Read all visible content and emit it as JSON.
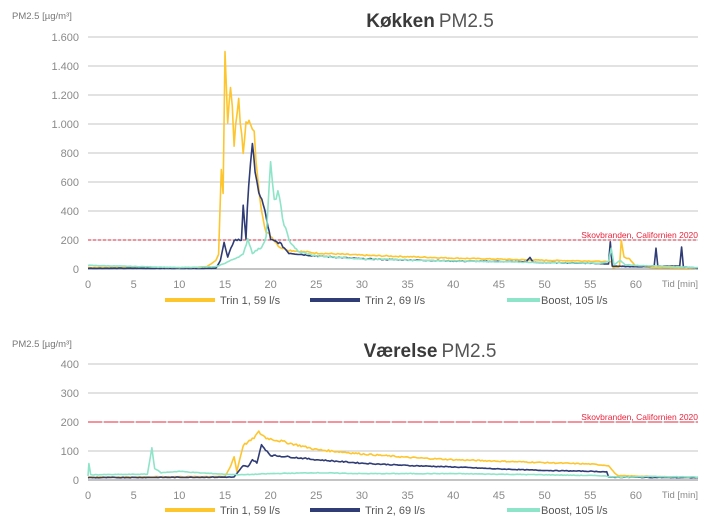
{
  "colors": {
    "trin1": "#fdc52e",
    "trin2": "#2f3c75",
    "boost": "#8ee4c8",
    "reference": "#e8243c",
    "grid": "#c4c4c4"
  },
  "chart_data": [
    {
      "type": "line",
      "title_bold": "Køkken",
      "title_rest": "PM2.5",
      "ylabel": "PM2.5 [µg/m³]",
      "xlabel": "Tid [min]",
      "xlim": [
        0,
        66.8
      ],
      "ylim": [
        0,
        1600
      ],
      "xticks": [
        0,
        5,
        10,
        15,
        20,
        25,
        30,
        35,
        40,
        45,
        50,
        55,
        60
      ],
      "yticks": [
        0,
        200,
        400,
        600,
        800,
        1000,
        1200,
        1400,
        1600
      ],
      "ytick_labels": [
        "0",
        "200",
        "400",
        "600",
        "800",
        "1.000",
        "1.200",
        "1.400",
        "1.600"
      ],
      "grid": true,
      "legend_position": "bottom",
      "reference": {
        "label": "Skovbranden, Californien 2020",
        "value": 200
      },
      "series": [
        {
          "name": "Trin 1, 59 l/s",
          "key": "trin1",
          "points": [
            [
              0,
              10
            ],
            [
              10,
              8
            ],
            [
              13,
              15
            ],
            [
              14,
              60
            ],
            [
              14.3,
              100
            ],
            [
              14.6,
              700
            ],
            [
              14.8,
              500
            ],
            [
              15,
              1570
            ],
            [
              15.3,
              1000
            ],
            [
              15.6,
              1300
            ],
            [
              16,
              850
            ],
            [
              16.5,
              1180
            ],
            [
              17,
              770
            ],
            [
              17.3,
              1060
            ],
            [
              17.8,
              980
            ],
            [
              18.2,
              920
            ],
            [
              18.6,
              600
            ],
            [
              19,
              420
            ],
            [
              19.5,
              250
            ],
            [
              20,
              230
            ],
            [
              21,
              150
            ],
            [
              22,
              130
            ],
            [
              25,
              110
            ],
            [
              30,
              95
            ],
            [
              35,
              85
            ],
            [
              40,
              75
            ],
            [
              45,
              68
            ],
            [
              50,
              60
            ],
            [
              55,
              55
            ],
            [
              57.3,
              50
            ],
            [
              57.5,
              10
            ],
            [
              58.2,
              15
            ],
            [
              58.4,
              200
            ],
            [
              58.7,
              80
            ],
            [
              59.3,
              70
            ],
            [
              60,
              20
            ],
            [
              62,
              10
            ],
            [
              66.8,
              5
            ]
          ]
        },
        {
          "name": "Trin 2, 69 l/s",
          "key": "trin2",
          "points": [
            [
              0,
              5
            ],
            [
              14,
              5
            ],
            [
              14.5,
              60
            ],
            [
              14.9,
              180
            ],
            [
              15.3,
              80
            ],
            [
              16,
              200
            ],
            [
              16.8,
              200
            ],
            [
              17,
              450
            ],
            [
              17.3,
              200
            ],
            [
              17.6,
              600
            ],
            [
              18,
              880
            ],
            [
              18.3,
              640
            ],
            [
              18.7,
              540
            ],
            [
              19.2,
              440
            ],
            [
              19.7,
              300
            ],
            [
              20,
              200
            ],
            [
              21,
              180
            ],
            [
              22,
              110
            ],
            [
              25,
              90
            ],
            [
              30,
              70
            ],
            [
              40,
              55
            ],
            [
              48,
              50
            ],
            [
              48.4,
              80
            ],
            [
              48.8,
              45
            ],
            [
              55,
              40
            ],
            [
              57,
              35
            ],
            [
              57.2,
              180
            ],
            [
              57.4,
              20
            ],
            [
              60,
              15
            ],
            [
              62,
              20
            ],
            [
              62.2,
              150
            ],
            [
              62.4,
              20
            ],
            [
              64.8,
              20
            ],
            [
              65,
              150
            ],
            [
              65.2,
              15
            ],
            [
              66.8,
              5
            ]
          ]
        },
        {
          "name": "Boost, 105 l/s",
          "key": "boost",
          "points": [
            [
              0,
              25
            ],
            [
              10,
              10
            ],
            [
              14,
              15
            ],
            [
              15,
              40
            ],
            [
              17,
              100
            ],
            [
              17.5,
              210
            ],
            [
              18,
              110
            ],
            [
              19,
              150
            ],
            [
              19.5,
              220
            ],
            [
              20,
              720
            ],
            [
              20.4,
              460
            ],
            [
              20.8,
              540
            ],
            [
              21.3,
              350
            ],
            [
              22,
              200
            ],
            [
              23,
              120
            ],
            [
              25,
              90
            ],
            [
              30,
              70
            ],
            [
              40,
              55
            ],
            [
              50,
              45
            ],
            [
              56,
              40
            ],
            [
              57,
              50
            ],
            [
              57.3,
              140
            ],
            [
              57.6,
              30
            ],
            [
              58.3,
              60
            ],
            [
              58.8,
              30
            ],
            [
              60,
              25
            ],
            [
              66.8,
              10
            ]
          ]
        }
      ]
    },
    {
      "type": "line",
      "title_bold": "Værelse",
      "title_rest": "PM2.5",
      "ylabel": "PM2.5 [µg/m³]",
      "xlabel": "Tid [min]",
      "xlim": [
        0,
        66.8
      ],
      "ylim": [
        0,
        400
      ],
      "xticks": [
        0,
        5,
        10,
        15,
        20,
        25,
        30,
        35,
        40,
        45,
        50,
        55,
        60
      ],
      "yticks": [
        0,
        100,
        200,
        300,
        400
      ],
      "ytick_labels": [
        "0",
        "100",
        "200",
        "300",
        "400"
      ],
      "grid": true,
      "legend_position": "bottom",
      "reference": {
        "label": "Skovbranden, Californien 2020",
        "value": 200
      },
      "series": [
        {
          "name": "Trin 1, 59 l/s",
          "key": "trin1",
          "points": [
            [
              0,
              10
            ],
            [
              15,
              12
            ],
            [
              15.5,
              40
            ],
            [
              16,
              80
            ],
            [
              16.3,
              30
            ],
            [
              17,
              120
            ],
            [
              18,
              140
            ],
            [
              18.7,
              165
            ],
            [
              19.5,
              145
            ],
            [
              21,
              135
            ],
            [
              25,
              105
            ],
            [
              30,
              90
            ],
            [
              35,
              78
            ],
            [
              40,
              70
            ],
            [
              45,
              65
            ],
            [
              50,
              60
            ],
            [
              55,
              55
            ],
            [
              57,
              50
            ],
            [
              57.5,
              30
            ],
            [
              58,
              15
            ],
            [
              62,
              12
            ],
            [
              66.8,
              8
            ]
          ]
        },
        {
          "name": "Trin 2, 69 l/s",
          "key": "trin2",
          "points": [
            [
              0,
              8
            ],
            [
              16,
              10
            ],
            [
              16.5,
              30
            ],
            [
              17,
              50
            ],
            [
              17.5,
              45
            ],
            [
              18,
              70
            ],
            [
              18.5,
              60
            ],
            [
              19,
              120
            ],
            [
              19.6,
              100
            ],
            [
              20,
              85
            ],
            [
              22,
              80
            ],
            [
              25,
              70
            ],
            [
              30,
              58
            ],
            [
              35,
              50
            ],
            [
              40,
              45
            ],
            [
              45,
              38
            ],
            [
              50,
              33
            ],
            [
              55,
              30
            ],
            [
              56.8,
              28
            ],
            [
              57,
              10
            ],
            [
              66.8,
              8
            ]
          ]
        },
        {
          "name": "Boost, 105 l/s",
          "key": "boost",
          "points": [
            [
              0,
              15
            ],
            [
              0.1,
              55
            ],
            [
              0.3,
              18
            ],
            [
              6.5,
              20
            ],
            [
              7,
              110
            ],
            [
              7.3,
              40
            ],
            [
              8,
              25
            ],
            [
              10,
              30
            ],
            [
              12,
              25
            ],
            [
              15,
              20
            ],
            [
              17,
              18
            ],
            [
              20,
              22
            ],
            [
              25,
              25
            ],
            [
              30,
              22
            ],
            [
              40,
              22
            ],
            [
              50,
              18
            ],
            [
              56,
              15
            ],
            [
              58,
              10
            ],
            [
              62,
              12
            ],
            [
              66.8,
              10
            ]
          ]
        }
      ]
    }
  ]
}
